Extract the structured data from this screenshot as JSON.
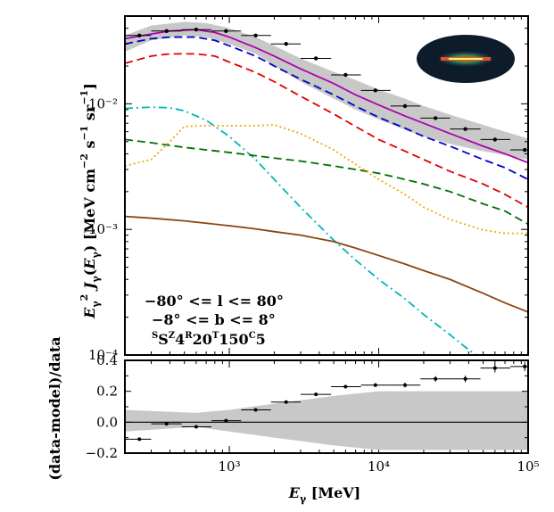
{
  "chart_data": [
    {
      "type": "line",
      "scale": "log-log",
      "xlabel": "E_γ [MeV]",
      "ylabel": "E_γ^2 J_γ(E_γ) [MeV cm^-2 s^-1 sr^-1]",
      "xlim": [
        200,
        100000
      ],
      "ylim": [
        0.0001,
        0.05
      ],
      "x_ticks": [
        {
          "v": 1000,
          "label": "10³"
        },
        {
          "v": 10000,
          "label": "10⁴"
        },
        {
          "v": 100000,
          "label": "10⁵"
        }
      ],
      "y_ticks": [
        {
          "v": 0.01,
          "label": "10⁻²"
        },
        {
          "v": 0.001,
          "label": "10⁻³"
        },
        {
          "v": 0.0001,
          "label": "10⁻⁴"
        }
      ],
      "annotations": [
        "−80° <= l <= 80°",
        "−8° <= b <= 8°",
        "ˢS^Z4^R20^T150^C5"
      ],
      "inset": "elliptical sky-map thumbnail",
      "band": {
        "color": "#c8c8c8",
        "x": [
          200,
          300,
          500,
          700,
          1000,
          1500,
          2000,
          3000,
          5000,
          7000,
          10000,
          15000,
          20000,
          30000,
          50000,
          70000,
          100000
        ],
        "upper": [
          0.035,
          0.042,
          0.045,
          0.044,
          0.04,
          0.034,
          0.029,
          0.023,
          0.018,
          0.0155,
          0.013,
          0.011,
          0.0096,
          0.0082,
          0.0068,
          0.006,
          0.0053
        ],
        "lower": [
          0.026,
          0.032,
          0.035,
          0.034,
          0.03,
          0.025,
          0.02,
          0.015,
          0.011,
          0.009,
          0.0075,
          0.0062,
          0.0055,
          0.0048,
          0.0042,
          0.0039,
          0.0036
        ]
      },
      "series": [
        {
          "color": "#b000b0",
          "dash": "solid",
          "x": [
            200,
            300,
            400,
            600,
            800,
            1000,
            1500,
            2000,
            3000,
            5000,
            7000,
            10000,
            15000,
            20000,
            30000,
            50000,
            70000,
            100000
          ],
          "y": [
            0.033,
            0.036,
            0.038,
            0.039,
            0.037,
            0.034,
            0.028,
            0.024,
            0.019,
            0.0145,
            0.0118,
            0.0098,
            0.008,
            0.007,
            0.0058,
            0.0046,
            0.004,
            0.0034
          ]
        },
        {
          "color": "#0000c8",
          "dash": "dashed",
          "x": [
            200,
            300,
            400,
            600,
            800,
            1000,
            1500,
            2000,
            3000,
            5000,
            7000,
            10000,
            15000,
            20000,
            30000,
            50000,
            70000,
            100000
          ],
          "y": [
            0.03,
            0.033,
            0.034,
            0.034,
            0.032,
            0.029,
            0.024,
            0.02,
            0.0157,
            0.0118,
            0.0096,
            0.0078,
            0.0064,
            0.0055,
            0.0046,
            0.0036,
            0.0031,
            0.0025
          ]
        },
        {
          "color": "#e00000",
          "dash": "dashed",
          "x": [
            200,
            300,
            400,
            600,
            800,
            1000,
            1500,
            2000,
            3000,
            5000,
            7000,
            10000,
            15000,
            20000,
            30000,
            50000,
            70000,
            100000
          ],
          "y": [
            0.021,
            0.024,
            0.025,
            0.025,
            0.024,
            0.0215,
            0.0178,
            0.015,
            0.0115,
            0.0083,
            0.0066,
            0.0052,
            0.0042,
            0.0036,
            0.0029,
            0.0023,
            0.0019,
            0.0015
          ]
        },
        {
          "color": "#00b8b8",
          "dash": "dashdot",
          "x": [
            200,
            300,
            400,
            500,
            700,
            1000,
            1500,
            2000,
            3000,
            5000,
            7000,
            10000,
            15000,
            20000,
            30000,
            40000,
            50000
          ],
          "y": [
            0.0092,
            0.0094,
            0.0093,
            0.0088,
            0.0074,
            0.0055,
            0.0036,
            0.0025,
            0.0015,
            0.00082,
            0.00057,
            0.0004,
            0.00028,
            0.00021,
            0.000145,
            0.00011,
            9.2e-05
          ]
        },
        {
          "color": "#007000",
          "dash": "dashed",
          "x": [
            200,
            300,
            500,
            700,
            1000,
            2000,
            3000,
            5000,
            7000,
            10000,
            15000,
            20000,
            30000,
            50000,
            70000,
            100000
          ],
          "y": [
            0.0052,
            0.0049,
            0.0045,
            0.0043,
            0.0041,
            0.0037,
            0.0035,
            0.0032,
            0.003,
            0.0028,
            0.0025,
            0.0023,
            0.002,
            0.0016,
            0.0014,
            0.0011
          ]
        },
        {
          "color": "#f0a800",
          "dash": "dotted",
          "x": [
            200,
            300,
            400,
            500,
            700,
            1000,
            1500,
            2000,
            3000,
            5000,
            7000,
            10000,
            15000,
            20000,
            30000,
            50000,
            70000,
            100000
          ],
          "y": [
            0.0032,
            0.0036,
            0.005,
            0.0066,
            0.0067,
            0.0067,
            0.0067,
            0.0068,
            0.0058,
            0.0043,
            0.0033,
            0.0025,
            0.0019,
            0.0015,
            0.0012,
            0.00099,
            0.00093,
            0.00093
          ]
        },
        {
          "color": "#8b4513",
          "dash": "solid",
          "x": [
            200,
            300,
            500,
            700,
            1000,
            1500,
            2000,
            3000,
            5000,
            7000,
            10000,
            15000,
            20000,
            30000,
            50000,
            70000,
            100000
          ],
          "y": [
            0.00127,
            0.00123,
            0.00117,
            0.00112,
            0.00107,
            0.00101,
            0.00096,
            0.0009,
            0.0008,
            0.00071,
            0.00062,
            0.00053,
            0.00047,
            0.0004,
            0.00031,
            0.00026,
            0.00022
          ]
        }
      ],
      "data_points": {
        "x": [
          250,
          380,
          600,
          950,
          1500,
          2400,
          3800,
          6000,
          9500,
          15000,
          24000,
          38000,
          60000,
          95000
        ],
        "y": [
          0.035,
          0.038,
          0.039,
          0.038,
          0.035,
          0.03,
          0.023,
          0.017,
          0.0128,
          0.0096,
          0.0077,
          0.0063,
          0.0052,
          0.0043
        ],
        "xerr_low": [
          200,
          300,
          480,
          760,
          1200,
          1900,
          3000,
          4800,
          7600,
          12000,
          19000,
          30000,
          48000,
          76000
        ],
        "xerr_high": [
          300,
          480,
          760,
          1200,
          1900,
          3000,
          4800,
          7600,
          12000,
          19000,
          30000,
          48000,
          76000,
          100000
        ]
      }
    },
    {
      "type": "scatter",
      "scale": "log-x",
      "xlabel": "E_γ [MeV]",
      "ylabel": "(data-model)/data",
      "xlim": [
        200,
        100000
      ],
      "ylim": [
        -0.2,
        0.4
      ],
      "y_ticks": [
        {
          "v": -0.2,
          "label": "−0.2"
        },
        {
          "v": 0.0,
          "label": "0.0"
        },
        {
          "v": 0.2,
          "label": "0.2"
        },
        {
          "v": 0.4,
          "label": "0.4"
        }
      ],
      "zero_line": 0,
      "band": {
        "color": "#c8c8c8",
        "x": [
          200,
          600,
          1000,
          2000,
          5000,
          10000,
          100000
        ],
        "upper": [
          0.08,
          0.06,
          0.08,
          0.12,
          0.17,
          0.2,
          0.2
        ],
        "lower": [
          -0.06,
          -0.03,
          -0.06,
          -0.1,
          -0.15,
          -0.18,
          -0.18
        ]
      },
      "points": {
        "x": [
          250,
          380,
          600,
          950,
          1500,
          2400,
          3800,
          6000,
          9500,
          15000,
          24000,
          38000,
          60000,
          95000
        ],
        "y": [
          -0.11,
          -0.01,
          -0.03,
          0.01,
          0.08,
          0.13,
          0.18,
          0.23,
          0.24,
          0.24,
          0.28,
          0.28,
          0.35,
          0.36
        ],
        "yerr": [
          0.008,
          0.008,
          0.008,
          0.008,
          0.008,
          0.008,
          0.01,
          0.01,
          0.012,
          0.015,
          0.018,
          0.022,
          0.028,
          0.03
        ],
        "xerr_low": [
          200,
          300,
          480,
          760,
          1200,
          1900,
          3000,
          4800,
          7600,
          12000,
          19000,
          30000,
          48000,
          76000
        ],
        "xerr_high": [
          300,
          480,
          760,
          1200,
          1900,
          3000,
          4800,
          7600,
          12000,
          19000,
          30000,
          48000,
          76000,
          100000
        ]
      }
    }
  ]
}
